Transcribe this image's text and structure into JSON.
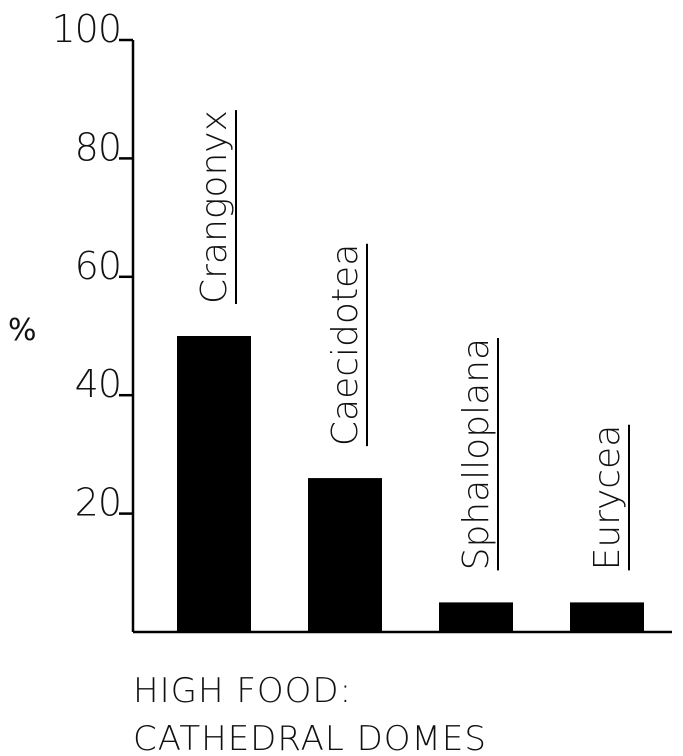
{
  "chart_data": {
    "type": "bar",
    "categories": [
      "Crangonyx",
      "Caecidotea",
      "Sphalloplana",
      "Eurycea"
    ],
    "values": [
      50,
      26,
      5,
      5
    ],
    "ylabel": "%",
    "ylim": [
      0,
      100
    ],
    "yticks": [
      "100",
      "80",
      "60",
      "40",
      "20"
    ],
    "caption_lines": [
      "HIGH FOOD:",
      "CATHEDRAL DOMES"
    ],
    "bar_color": "#000000",
    "grid": false
  }
}
